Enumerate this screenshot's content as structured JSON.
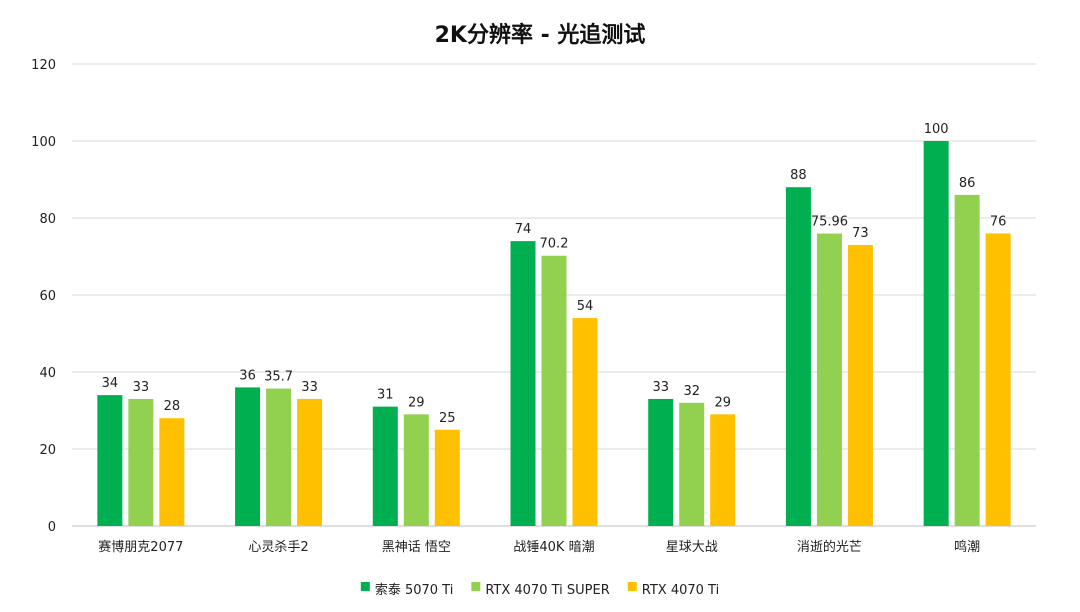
{
  "chart_data": {
    "type": "bar",
    "title": "2K分辨率 - 光追测试",
    "xlabel": "",
    "ylabel": "",
    "ylim": [
      0,
      120
    ],
    "yticks": [
      0,
      20,
      40,
      60,
      80,
      100,
      120
    ],
    "grid": true,
    "legend_position": "bottom",
    "categories": [
      "赛博朋克2077",
      "心灵杀手2",
      "黑神话 悟空",
      "战锤40K 暗潮",
      "星球大战",
      "消逝的光芒",
      "鸣潮"
    ],
    "series": [
      {
        "name": "索泰 5070 Ti",
        "color": "#00b050",
        "values": [
          34,
          36,
          31,
          74,
          33,
          88,
          100
        ],
        "labels": [
          "34",
          "36",
          "31",
          "74",
          "33",
          "88",
          "100"
        ]
      },
      {
        "name": "RTX 4070 Ti SUPER",
        "color": "#92d050",
        "values": [
          33,
          35.7,
          29,
          70.2,
          32,
          75.96,
          86
        ],
        "labels": [
          "33",
          "35.7",
          "29",
          "70.2",
          "32",
          "75.96",
          "86"
        ]
      },
      {
        "name": "RTX 4070 Ti",
        "color": "#ffc000",
        "values": [
          28,
          33,
          25,
          54,
          29,
          73,
          76
        ],
        "labels": [
          "28",
          "33",
          "25",
          "54",
          "29",
          "73",
          "76"
        ]
      }
    ]
  }
}
